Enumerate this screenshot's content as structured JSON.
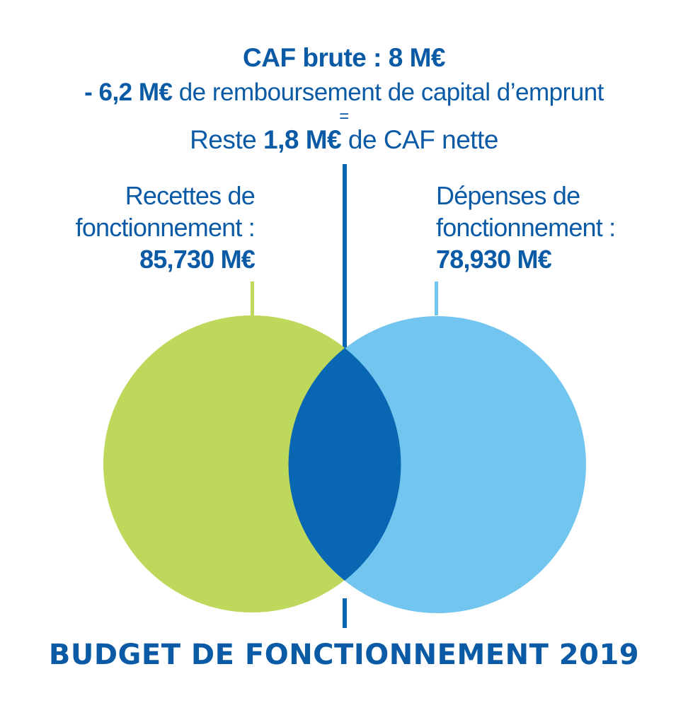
{
  "header": {
    "caf_brute": "CAF brute : 8 M€",
    "remboursement_amount": "- 6,2 M€",
    "remboursement_text": " de remboursement de capital d’emprunt",
    "equals": "=",
    "reste_prefix": "Reste ",
    "reste_amount": "1,8 M€",
    "reste_suffix": " de CAF nette"
  },
  "recettes": {
    "label_line1": "Recettes de",
    "label_line2": "fonctionnement :",
    "amount": "85,730 M€"
  },
  "depenses": {
    "label_line1": "Dépenses de",
    "label_line2": "fonctionnement :",
    "amount": "78,930 M€"
  },
  "footer": {
    "title": "BUDGET DE FONCTIONNEMENT 2019"
  },
  "colors": {
    "recettes_circle": "#bdd85a",
    "depenses_circle": "#72c5ee",
    "overlap": "#0966b2",
    "text": "#0a5aa5",
    "connector_lines": "#0966b2"
  }
}
